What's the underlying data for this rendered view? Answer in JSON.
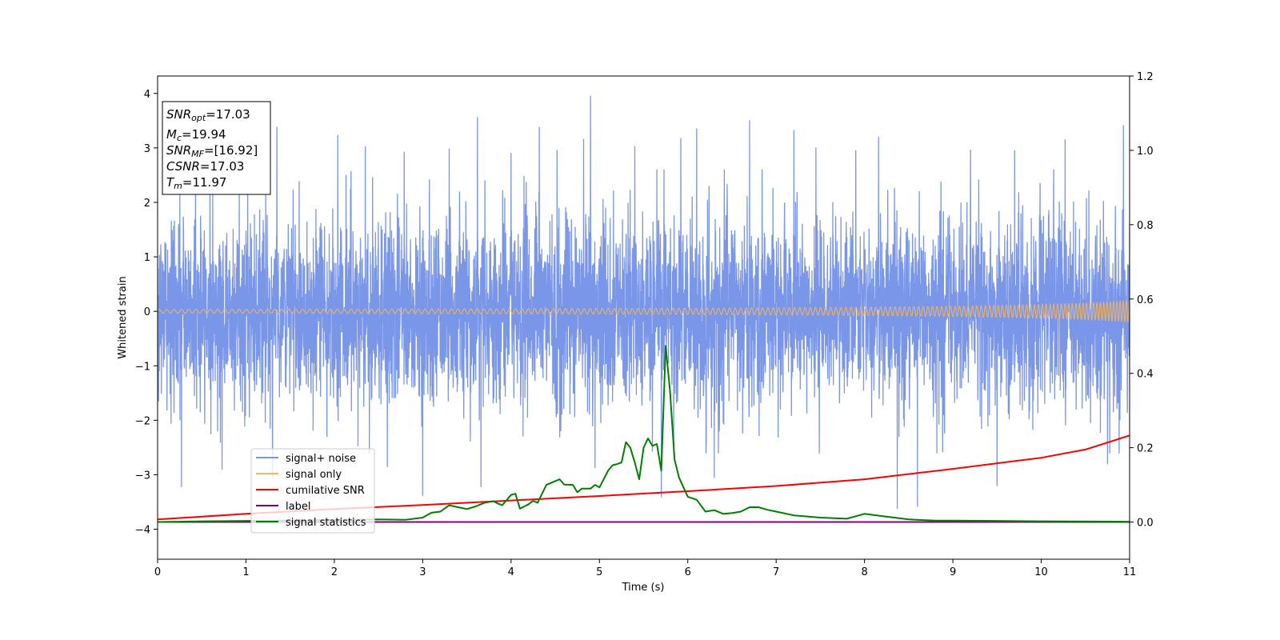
{
  "chart_data": {
    "type": "line",
    "xlabel": "Time (s)",
    "ylabel": "Whitened strain",
    "xlim": [
      0,
      11
    ],
    "ylim": [
      -4.55,
      4.32
    ],
    "y2lim": [
      -0.1,
      1.2
    ],
    "x_ticks": [
      "0",
      "1",
      "2",
      "3",
      "4",
      "5",
      "6",
      "7",
      "8",
      "9",
      "10",
      "11"
    ],
    "y_ticks": [
      "4",
      "3",
      "2",
      "1",
      "0",
      "−1",
      "−2",
      "−3",
      "−4"
    ],
    "y2_ticks": [
      "1.2",
      "1.0",
      "0.8",
      "0.6",
      "0.4",
      "0.2",
      "0.0"
    ],
    "grid": false,
    "legend_position": "lower-left",
    "info_box": {
      "snr_opt": {
        "base": "SNR",
        "sub": "opt",
        "rest": "=17.03"
      },
      "mc": {
        "base": "M",
        "sub": "c",
        "rest": "=19.94"
      },
      "snr_mf": {
        "base": "SNR",
        "sub": "MF",
        "rest": "=[16.92]"
      },
      "csnr": {
        "base": "CSNR",
        "rest": "=17.03"
      },
      "tm": {
        "base": "T",
        "sub": "m",
        "rest": "=11.97"
      }
    },
    "series": [
      {
        "name": "signal+ noise",
        "color": "#7a96e8",
        "axis": "left",
        "kind": "noise",
        "sigma": 0.85,
        "spikes": [
          [
            0.27,
            -3.22
          ],
          [
            0.43,
            2.83
          ],
          [
            0.73,
            -2.9
          ],
          [
            1.02,
            3.02
          ],
          [
            1.3,
            -3.05
          ],
          [
            1.35,
            3.38
          ],
          [
            1.42,
            -0.47
          ],
          [
            2.04,
            3.23
          ],
          [
            2.35,
            3.02
          ],
          [
            2.6,
            -2.85
          ],
          [
            2.79,
            2.92
          ],
          [
            3.0,
            -3.38
          ],
          [
            3.3,
            2.98
          ],
          [
            3.62,
            3.56
          ],
          [
            3.66,
            -3.22
          ],
          [
            4.0,
            2.9
          ],
          [
            4.32,
            3.38
          ],
          [
            4.52,
            2.96
          ],
          [
            4.82,
            3.16
          ],
          [
            4.9,
            3.95
          ],
          [
            4.95,
            -2.87
          ],
          [
            5.4,
            3.02
          ],
          [
            5.7,
            -3.4
          ],
          [
            5.92,
            3.17
          ],
          [
            6.1,
            3.35
          ],
          [
            6.3,
            -3.05
          ],
          [
            6.7,
            3.5
          ],
          [
            7.2,
            3.32
          ],
          [
            7.45,
            3.0
          ],
          [
            7.9,
            2.95
          ],
          [
            8.16,
            3.2
          ],
          [
            8.37,
            -3.62
          ],
          [
            8.6,
            -3.58
          ],
          [
            9.2,
            2.96
          ],
          [
            9.5,
            -3.2
          ],
          [
            9.7,
            2.95
          ],
          [
            10.27,
            3.15
          ],
          [
            10.75,
            -2.8
          ],
          [
            10.93,
            3.41
          ]
        ]
      },
      {
        "name": "signal only",
        "color": "#f2b55f",
        "axis": "left",
        "kind": "chirp",
        "amplitude_end": 0.2
      },
      {
        "name": "cumilative SNR",
        "color": "#ff0000",
        "axis": "right",
        "x": [
          0,
          1,
          2,
          3,
          4,
          5,
          6,
          7,
          8,
          9,
          10,
          10.5,
          11
        ],
        "values": [
          0.007,
          0.022,
          0.035,
          0.046,
          0.058,
          0.07,
          0.083,
          0.097,
          0.115,
          0.143,
          0.173,
          0.195,
          0.233
        ]
      },
      {
        "name": "label",
        "color": "#800080",
        "axis": "right",
        "x": [
          0,
          11
        ],
        "values": [
          0.0,
          0.0
        ]
      },
      {
        "name": "signal statistics",
        "color": "#008000",
        "axis": "right",
        "x": [
          0,
          0.5,
          1.0,
          1.5,
          2.0,
          2.5,
          2.8,
          3.0,
          3.1,
          3.2,
          3.3,
          3.4,
          3.5,
          3.6,
          3.7,
          3.8,
          3.85,
          3.9,
          4.0,
          4.05,
          4.1,
          4.15,
          4.2,
          4.25,
          4.3,
          4.4,
          4.5,
          4.55,
          4.6,
          4.7,
          4.75,
          4.8,
          4.9,
          4.95,
          5.0,
          5.1,
          5.15,
          5.2,
          5.25,
          5.3,
          5.35,
          5.4,
          5.45,
          5.5,
          5.55,
          5.6,
          5.65,
          5.7,
          5.75,
          5.8,
          5.85,
          5.9,
          6.0,
          6.1,
          6.2,
          6.3,
          6.4,
          6.5,
          6.6,
          6.7,
          6.8,
          6.9,
          7.0,
          7.2,
          7.5,
          7.8,
          8.0,
          8.2,
          8.5,
          8.8,
          9.0,
          9.5,
          10.0,
          11.0
        ],
        "values": [
          0.0,
          0.002,
          0.003,
          0.004,
          0.006,
          0.007,
          0.006,
          0.012,
          0.025,
          0.028,
          0.045,
          0.04,
          0.035,
          0.042,
          0.052,
          0.056,
          0.05,
          0.045,
          0.073,
          0.076,
          0.036,
          0.042,
          0.048,
          0.057,
          0.052,
          0.1,
          0.11,
          0.115,
          0.101,
          0.1,
          0.08,
          0.09,
          0.09,
          0.1,
          0.093,
          0.139,
          0.153,
          0.156,
          0.16,
          0.215,
          0.2,
          0.16,
          0.115,
          0.2,
          0.225,
          0.205,
          0.21,
          0.138,
          0.474,
          0.35,
          0.168,
          0.12,
          0.068,
          0.06,
          0.028,
          0.032,
          0.022,
          0.024,
          0.028,
          0.04,
          0.04,
          0.033,
          0.028,
          0.018,
          0.012,
          0.009,
          0.022,
          0.016,
          0.007,
          0.004,
          0.004,
          0.003,
          0.002,
          0.001
        ]
      }
    ]
  }
}
